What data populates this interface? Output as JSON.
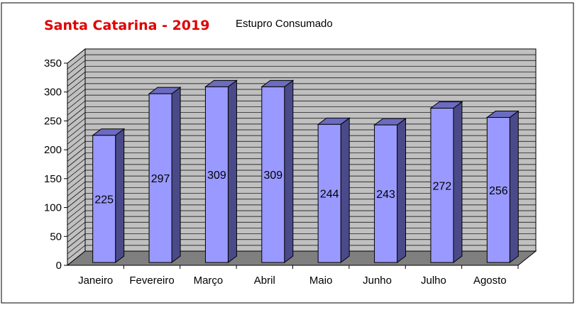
{
  "header": {
    "title": "Santa Catarina - 2019",
    "subtitle": "Estupro Consumado"
  },
  "colors": {
    "title": "#e00000",
    "bar_face": "#9999ff",
    "bar_side": "#4a4a8a",
    "bar_top": "#6b6bc0",
    "wall": "#c0c0c0",
    "floor": "#7f7f7f",
    "grid": "#000000"
  },
  "chart_data": {
    "type": "bar",
    "title": "Santa Catarina - 2019",
    "subtitle": "Estupro Consumado",
    "xlabel": "",
    "ylabel": "",
    "categories": [
      "Janeiro",
      "Fevereiro",
      "Março",
      "Abril",
      "Maio",
      "Junho",
      "Julho",
      "Agosto"
    ],
    "series": [
      {
        "values": [
          225,
          297,
          309,
          309,
          244,
          243,
          272,
          256
        ]
      }
    ],
    "ylim": [
      0,
      350
    ],
    "yticks": [
      "0",
      "50",
      "100",
      "150",
      "200",
      "250",
      "300",
      "350"
    ],
    "data_labels": [
      "225",
      "297",
      "309",
      "309",
      "244",
      "243",
      "272",
      "256"
    ],
    "grid": true,
    "style": "3d"
  }
}
